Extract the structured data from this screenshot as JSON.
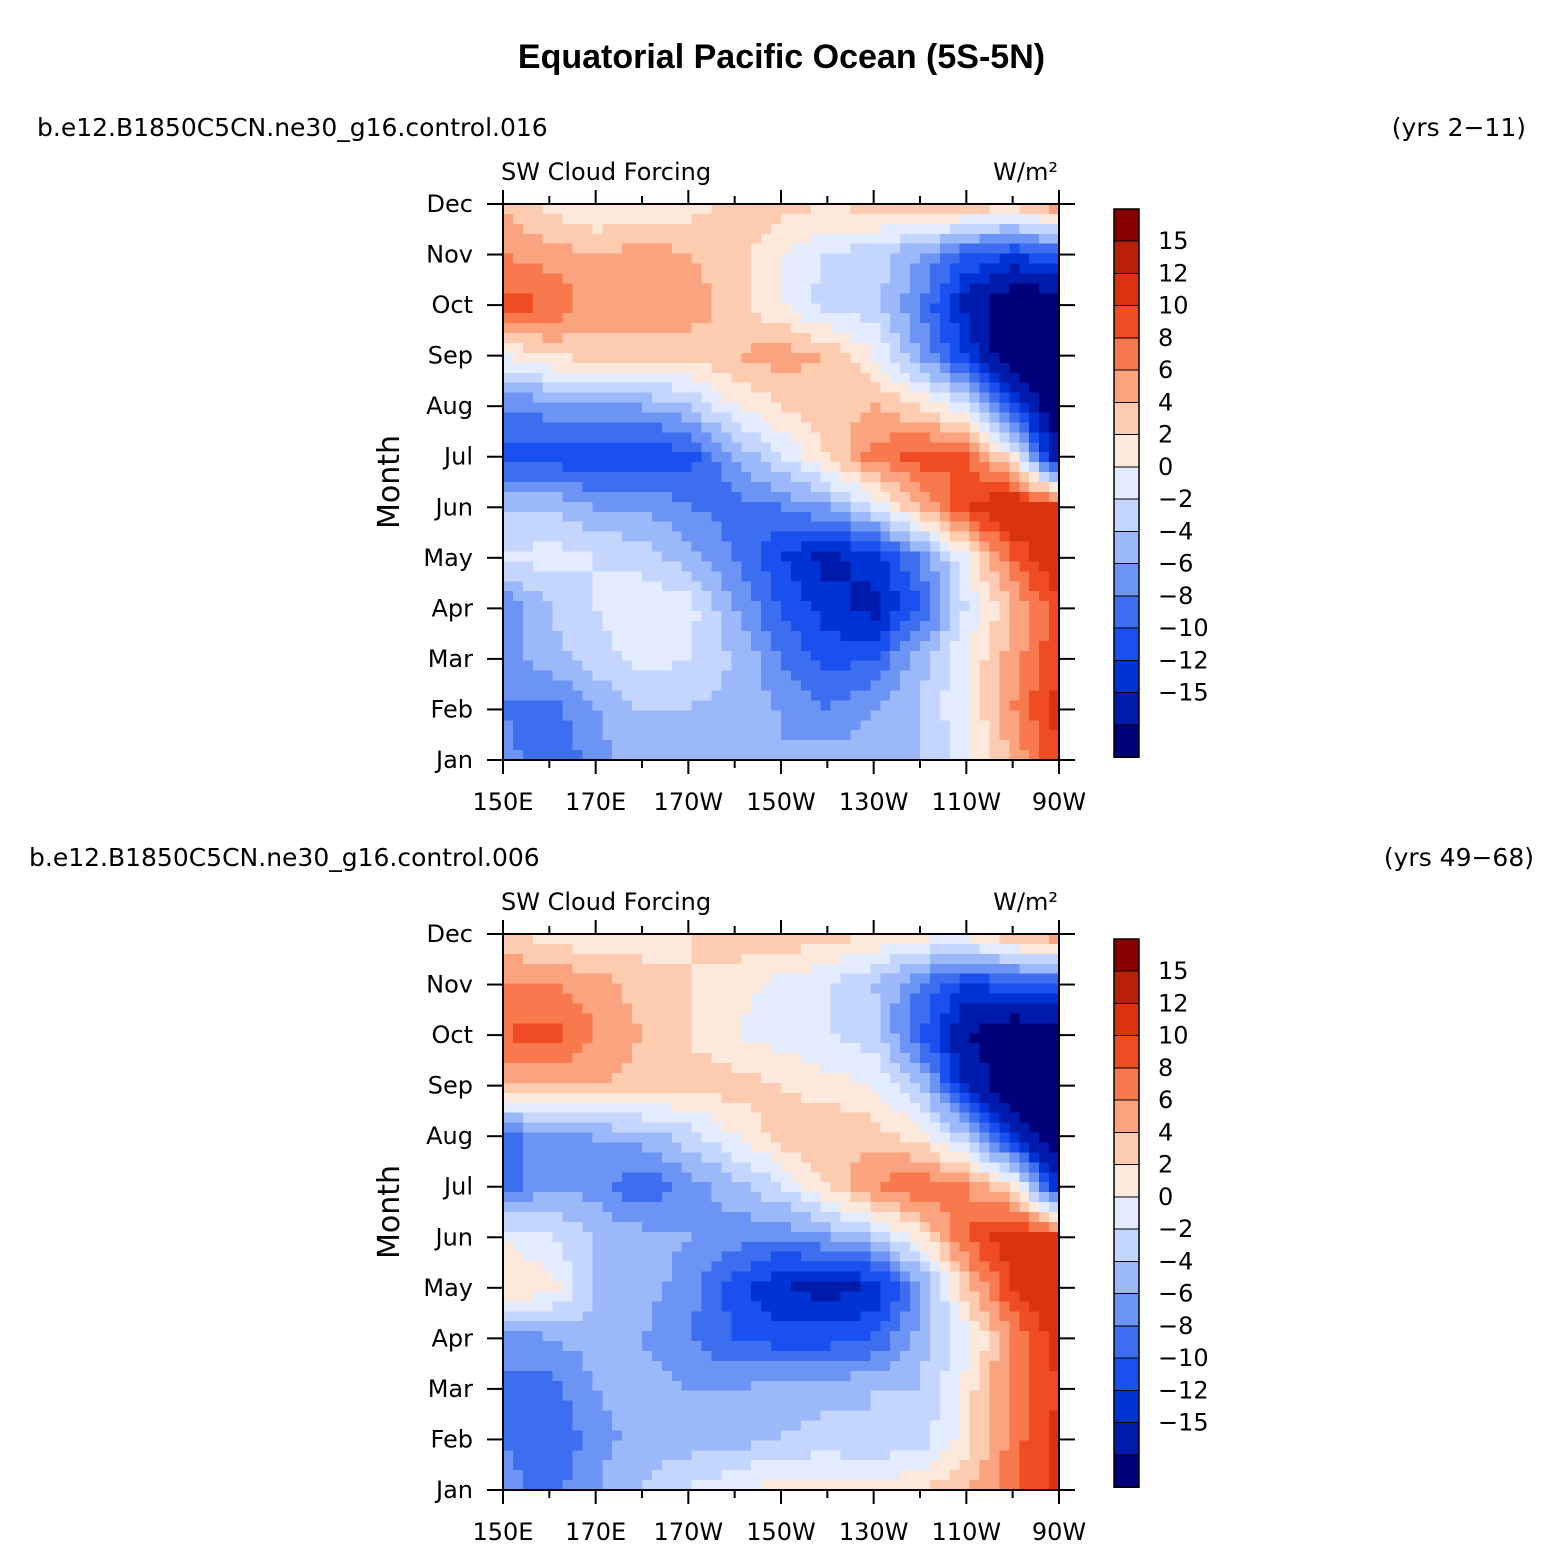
{
  "title": "Equatorial Pacific Ocean (5S-5N)",
  "colors": {
    "levels_palette": [
      "#00007a",
      "#001aab",
      "#0033d6",
      "#1a4ff0",
      "#3e6ef0",
      "#6c94f5",
      "#9bb8fb",
      "#c4d6fd",
      "#e2ecfe",
      "#fde8dc",
      "#fccbb0",
      "#fba37e",
      "#f7794d",
      "#f04c24",
      "#d93310",
      "#b82008",
      "#880000"
    ]
  },
  "chart_data": [
    {
      "type": "heatmap",
      "panel": "top",
      "case_name": "b.e12.B1850C5CN.ne30_g16.control.016",
      "years": "(yrs 2−11)",
      "variable": "SW Cloud Forcing",
      "units": "W/m²",
      "ylabel": "Month",
      "x_tick_labels": [
        "150E",
        "170E",
        "170W",
        "150W",
        "130W",
        "110W",
        "90W"
      ],
      "y_tick_labels": [
        "Jan",
        "Feb",
        "Mar",
        "Apr",
        "May",
        "Jun",
        "Jul",
        "Aug",
        "Sep",
        "Oct",
        "Nov",
        "Dec"
      ],
      "colorbar_labels": [
        "15",
        "12",
        "10",
        "8",
        "6",
        "4",
        "2",
        "0",
        "−2",
        "−4",
        "−6",
        "−8",
        "−10",
        "−12",
        "−15"
      ],
      "xlim_lon_east": [
        150,
        270
      ],
      "months": [
        "Jan",
        "Feb",
        "Mar",
        "Apr",
        "May",
        "Jun",
        "Jul",
        "Aug",
        "Sep",
        "Oct",
        "Nov",
        "Dec"
      ],
      "lons": [
        150,
        160,
        170,
        180,
        190,
        200,
        210,
        220,
        230,
        240,
        250,
        260,
        270
      ],
      "values": [
        [
          -5,
          -8,
          -5,
          -2,
          -3,
          -3,
          -4,
          -3,
          -3,
          -2,
          1,
          6,
          12
        ],
        [
          -6,
          -7,
          -4,
          -2,
          -2,
          -3,
          -4,
          -6,
          -4,
          -2,
          2,
          8,
          13
        ],
        [
          -5,
          -3,
          -1,
          1,
          0,
          -2,
          -6,
          -9,
          -8,
          -3,
          2,
          7,
          12
        ],
        [
          -6,
          -2,
          0,
          2,
          1,
          -4,
          -8,
          -11,
          -13,
          -8,
          0,
          6,
          11
        ],
        [
          0,
          1,
          0,
          -1,
          -3,
          -6,
          -10,
          -13,
          -11,
          -6,
          2,
          10,
          15
        ],
        [
          -2,
          -2,
          -4,
          -4,
          -6,
          -7,
          -6,
          -4,
          0,
          6,
          12,
          15,
          12
        ],
        [
          -9,
          -9,
          -10,
          -10,
          -9,
          -4,
          0,
          4,
          9,
          11,
          10,
          3,
          -15
        ],
        [
          -6,
          -5,
          -4,
          -4,
          -2,
          2,
          4,
          5,
          6,
          4,
          0,
          -10,
          -18
        ],
        [
          2,
          4,
          5,
          5,
          5,
          6,
          7,
          6,
          2,
          -4,
          -10,
          -18,
          -18
        ],
        [
          11,
          10,
          7,
          7,
          7,
          5,
          2,
          -1,
          -1,
          -6,
          -13,
          -18,
          -18
        ],
        [
          8,
          7,
          6,
          7,
          6,
          5,
          2,
          0,
          -1,
          -4,
          -8,
          -10,
          -8
        ],
        [
          6,
          3,
          2,
          2,
          3,
          5,
          5,
          4,
          5,
          6,
          6,
          5,
          8
        ]
      ]
    },
    {
      "type": "heatmap",
      "panel": "bottom",
      "case_name": "b.e12.B1850C5CN.ne30_g16.control.006",
      "years": "(yrs 49−68)",
      "variable": "SW Cloud Forcing",
      "units": "W/m²",
      "ylabel": "Month",
      "x_tick_labels": [
        "150E",
        "170E",
        "170W",
        "150W",
        "130W",
        "110W",
        "90W"
      ],
      "y_tick_labels": [
        "Jan",
        "Feb",
        "Mar",
        "Apr",
        "May",
        "Jun",
        "Jul",
        "Aug",
        "Sep",
        "Oct",
        "Nov",
        "Dec"
      ],
      "colorbar_labels": [
        "15",
        "12",
        "10",
        "8",
        "6",
        "4",
        "2",
        "0",
        "−2",
        "−4",
        "−6",
        "−8",
        "−10",
        "−12",
        "−15"
      ],
      "xlim_lon_east": [
        150,
        270
      ],
      "months": [
        "Jan",
        "Feb",
        "Mar",
        "Apr",
        "May",
        "Jun",
        "Jul",
        "Aug",
        "Sep",
        "Oct",
        "Nov",
        "Dec"
      ],
      "lons": [
        150,
        160,
        170,
        180,
        190,
        200,
        210,
        220,
        230,
        240,
        250,
        260,
        270
      ],
      "values": [
        [
          -5,
          -7,
          -4,
          -2,
          0,
          2,
          3,
          3,
          3,
          4,
          6,
          9,
          13
        ],
        [
          -6,
          -8,
          -5,
          -3,
          -3,
          -3,
          -2,
          -1,
          -2,
          -1,
          3,
          9,
          13
        ],
        [
          -6,
          -7,
          -4,
          -3,
          -4,
          -4,
          -3,
          -3,
          -2,
          -2,
          3,
          9,
          12
        ],
        [
          -6,
          -4,
          -3,
          -4,
          -6,
          -8,
          -9,
          -9,
          -8,
          -3,
          1,
          8,
          13
        ],
        [
          4,
          3,
          -2,
          -3,
          -5,
          -9,
          -12,
          -13,
          -12,
          -5,
          5,
          12,
          15
        ],
        [
          2,
          0,
          -2,
          -3,
          -4,
          -5,
          -6,
          -4,
          -2,
          3,
          10,
          14,
          12
        ],
        [
          -8,
          -4,
          -5,
          -8,
          -5,
          -3,
          0,
          4,
          8,
          10,
          8,
          4,
          -12
        ],
        [
          -8,
          -4,
          -4,
          -3,
          -1,
          2,
          5,
          6,
          5,
          3,
          -2,
          -12,
          -18
        ],
        [
          6,
          6,
          6,
          5,
          5,
          5,
          4,
          3,
          2,
          -2,
          -12,
          -18,
          -18
        ],
        [
          10,
          11,
          8,
          6,
          4,
          2,
          1,
          0,
          -1,
          -8,
          -15,
          -18,
          -18
        ],
        [
          8,
          8,
          7,
          5,
          4,
          3,
          1,
          0,
          -2,
          -6,
          -10,
          -9,
          -8
        ],
        [
          5,
          3,
          2,
          3,
          4,
          5,
          6,
          5,
          4,
          3,
          3,
          6,
          8
        ]
      ]
    }
  ]
}
